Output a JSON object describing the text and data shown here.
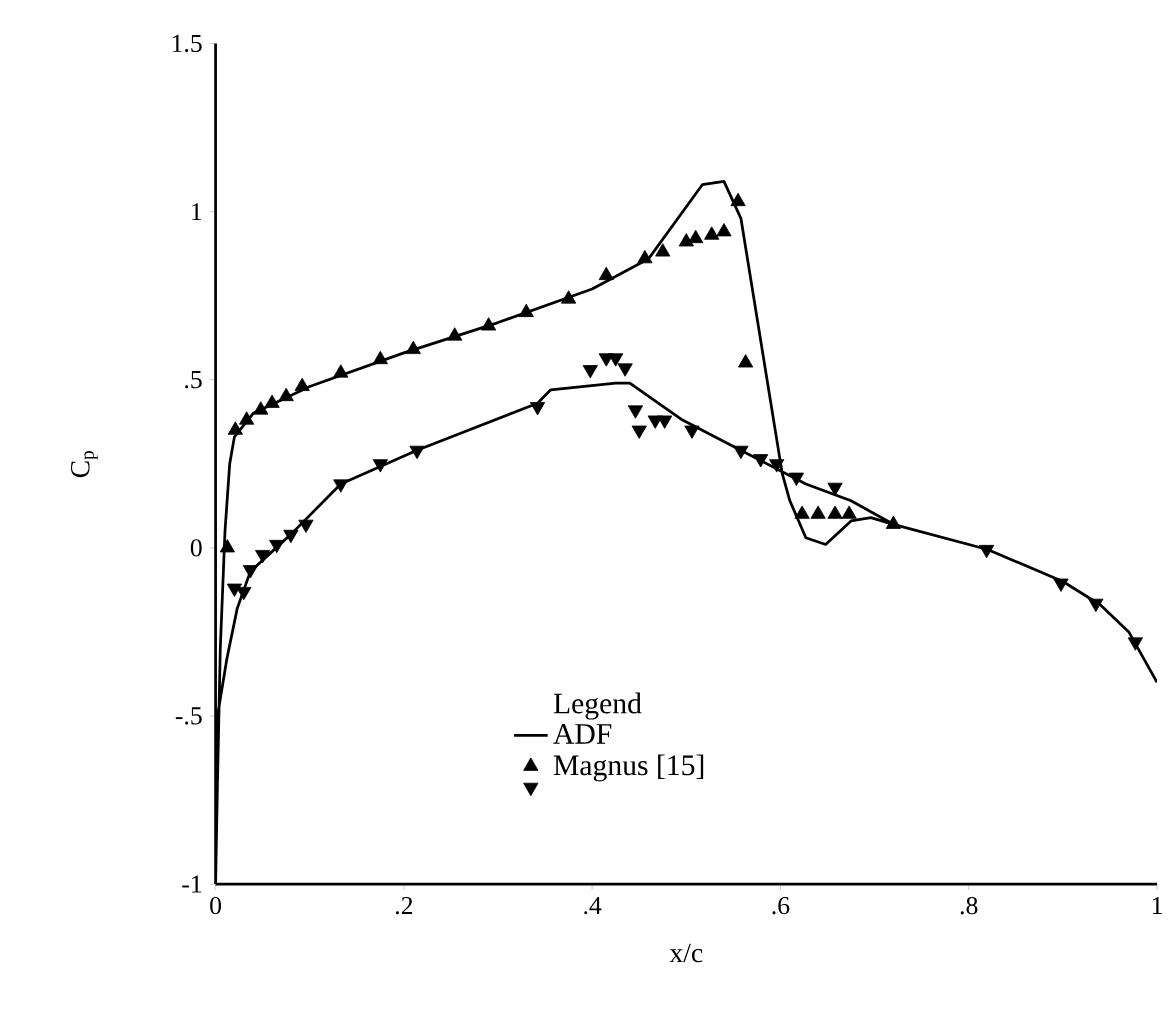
{
  "chart_data": {
    "type": "scatter",
    "xlabel": "x/c",
    "ylabel": "C$_{p}$",
    "legend_title": "Legend",
    "legend": "bottom",
    "grid": false,
    "xlim": [
      0,
      1
    ],
    "ylim": [
      -1,
      1.5
    ],
    "xticks": [
      0,
      {
        "value": 0.2,
        "label": ".2"
      },
      {
        "value": 0.4,
        "label": ".4"
      },
      {
        "value": 0.6,
        "label": ".6"
      },
      {
        "value": 0.8,
        "label": ".8"
      },
      1
    ],
    "yticks": [
      -1,
      {
        "value": -0.5,
        "label": "-.5"
      },
      0,
      {
        "value": 0.5,
        "label": ".5"
      },
      1,
      1.5
    ],
    "series": [
      {
        "name": "ADF",
        "type": "line",
        "marker": "none",
        "line_style": "solid",
        "color": "#000000",
        "x": [
          1.0,
          0.97,
          0.94,
          0.9,
          0.82,
          0.72,
          0.696,
          0.675,
          0.648,
          0.627,
          0.61,
          0.602,
          0.558,
          0.54,
          0.517,
          0.46,
          0.4,
          0.3,
          0.2,
          0.1,
          0.04,
          0.02,
          0.015,
          0.01,
          0.005,
          0.002,
          0.0,
          0.002,
          0.012,
          0.023,
          0.037,
          0.08,
          0.133,
          0.214,
          0.342,
          0.356,
          0.425,
          0.44,
          0.496,
          0.565,
          0.627,
          0.675,
          0.72
        ],
        "values": [
          -0.4,
          -0.25,
          -0.17,
          -0.1,
          -0.005,
          0.07,
          0.09,
          0.08,
          0.01,
          0.03,
          0.14,
          0.22,
          0.98,
          1.09,
          1.08,
          0.86,
          0.77,
          0.67,
          0.58,
          0.48,
          0.4,
          0.33,
          0.25,
          0.05,
          -0.3,
          -0.7,
          -1.0,
          -0.5,
          -0.33,
          -0.18,
          -0.07,
          0.04,
          0.19,
          0.29,
          0.43,
          0.47,
          0.49,
          0.49,
          0.38,
          0.28,
          0.19,
          0.14,
          0.07
        ]
      },
      {
        "name": "Magnus [15]",
        "marker": "triangle",
        "color": "#000000",
        "x": [
          0.0125,
          0.021,
          0.033,
          0.048,
          0.06,
          0.075,
          0.092,
          0.133,
          0.175,
          0.21,
          0.254,
          0.29,
          0.33,
          0.375,
          0.415,
          0.456,
          0.475,
          0.5,
          0.51,
          0.527,
          0.54,
          0.555,
          0.563,
          0.623,
          0.64,
          0.658,
          0.673,
          0.72
        ],
        "values": [
          0.0,
          0.35,
          0.38,
          0.41,
          0.43,
          0.45,
          0.48,
          0.52,
          0.56,
          0.59,
          0.63,
          0.66,
          0.7,
          0.74,
          0.81,
          0.86,
          0.88,
          0.91,
          0.92,
          0.93,
          0.94,
          1.03,
          0.55,
          0.1,
          0.1,
          0.1,
          0.1,
          0.07
        ]
      },
      {
        "marker": "triangle-down",
        "color": "#000000",
        "x": [
          0.02,
          0.03,
          0.037,
          0.05,
          0.065,
          0.08,
          0.096,
          0.133,
          0.175,
          0.214,
          0.342,
          0.398,
          0.415,
          0.425,
          0.435,
          0.446,
          0.45,
          0.467,
          0.477,
          0.506,
          0.558,
          0.579,
          0.596,
          0.617,
          0.658,
          0.819,
          0.898,
          0.935,
          0.977
        ],
        "values": [
          -0.12,
          -0.13,
          -0.065,
          -0.02,
          0.01,
          0.04,
          0.07,
          0.19,
          0.25,
          0.29,
          0.42,
          0.53,
          0.565,
          0.565,
          0.535,
          0.41,
          0.35,
          0.38,
          0.38,
          0.35,
          0.29,
          0.265,
          0.25,
          0.21,
          0.18,
          -0.005,
          -0.105,
          -0.165,
          -0.28
        ]
      }
    ]
  }
}
